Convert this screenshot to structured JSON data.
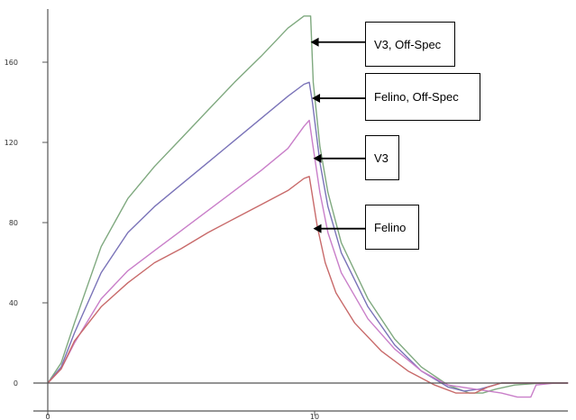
{
  "chart_data": {
    "type": "line",
    "title": "",
    "xlabel": "",
    "ylabel": "",
    "xlim": [
      0,
      19.5
    ],
    "ylim": [
      -8,
      185
    ],
    "x_ticks": [
      0,
      10
    ],
    "y_ticks": [
      0,
      40,
      80,
      120,
      160
    ],
    "grid": false,
    "colors": {
      "axis": "#555555",
      "zero_line": "#555555",
      "tick_label": "#333333",
      "arrow": "#000000",
      "callout_border": "#000000"
    },
    "series": [
      {
        "name": "V3, Off-Spec",
        "color": "#7fa97f",
        "points": [
          [
            0,
            0
          ],
          [
            0.5,
            10
          ],
          [
            1,
            30
          ],
          [
            2,
            68
          ],
          [
            3,
            92
          ],
          [
            4,
            108
          ],
          [
            5,
            122
          ],
          [
            6,
            136
          ],
          [
            7,
            150
          ],
          [
            8,
            163
          ],
          [
            9,
            177
          ],
          [
            9.6,
            183
          ],
          [
            9.85,
            183
          ],
          [
            9.95,
            150
          ],
          [
            10.2,
            118
          ],
          [
            10.5,
            95
          ],
          [
            11,
            70
          ],
          [
            12,
            42
          ],
          [
            13,
            22
          ],
          [
            14,
            8
          ],
          [
            15,
            -1
          ],
          [
            15.8,
            -5
          ],
          [
            16.3,
            -5
          ],
          [
            16.8,
            -3
          ],
          [
            17.5,
            -1
          ],
          [
            18.5,
            0
          ],
          [
            19.5,
            0
          ]
        ]
      },
      {
        "name": "Felino, Off-Spec",
        "color": "#7a73b8",
        "points": [
          [
            0,
            0
          ],
          [
            0.5,
            8
          ],
          [
            1,
            25
          ],
          [
            2,
            55
          ],
          [
            3,
            75
          ],
          [
            4,
            88
          ],
          [
            5,
            99
          ],
          [
            6,
            110
          ],
          [
            7,
            121
          ],
          [
            8,
            132
          ],
          [
            9,
            143
          ],
          [
            9.6,
            149
          ],
          [
            9.8,
            150
          ],
          [
            9.92,
            140
          ],
          [
            10.2,
            110
          ],
          [
            10.5,
            88
          ],
          [
            11,
            65
          ],
          [
            12,
            38
          ],
          [
            13,
            19
          ],
          [
            14,
            6
          ],
          [
            15,
            -2
          ],
          [
            15.6,
            -4
          ],
          [
            16.2,
            -3
          ],
          [
            17,
            0
          ],
          [
            18,
            0
          ],
          [
            19.5,
            0
          ]
        ]
      },
      {
        "name": "V3",
        "color": "#c97fc9",
        "points": [
          [
            0,
            0
          ],
          [
            0.5,
            7
          ],
          [
            1,
            20
          ],
          [
            2,
            42
          ],
          [
            3,
            56
          ],
          [
            4,
            66
          ],
          [
            5,
            76
          ],
          [
            6,
            86
          ],
          [
            7,
            96
          ],
          [
            8,
            106
          ],
          [
            9,
            117
          ],
          [
            9.6,
            128
          ],
          [
            9.8,
            131
          ],
          [
            9.92,
            120
          ],
          [
            10.2,
            95
          ],
          [
            10.5,
            75
          ],
          [
            11,
            55
          ],
          [
            12,
            32
          ],
          [
            13,
            17
          ],
          [
            14,
            6
          ],
          [
            15,
            -1
          ],
          [
            16,
            -3
          ],
          [
            17,
            -5
          ],
          [
            17.6,
            -7
          ],
          [
            18.1,
            -7
          ],
          [
            18.3,
            -1
          ],
          [
            19,
            0
          ],
          [
            19.5,
            0
          ]
        ]
      },
      {
        "name": "Felino",
        "color": "#c86a6a",
        "points": [
          [
            0,
            0
          ],
          [
            0.5,
            7
          ],
          [
            1,
            21
          ],
          [
            2,
            38
          ],
          [
            3,
            50
          ],
          [
            4,
            60
          ],
          [
            5,
            67
          ],
          [
            6,
            75
          ],
          [
            7,
            82
          ],
          [
            8,
            89
          ],
          [
            9,
            96
          ],
          [
            9.6,
            102
          ],
          [
            9.8,
            103
          ],
          [
            9.9,
            95
          ],
          [
            10.1,
            78
          ],
          [
            10.4,
            60
          ],
          [
            10.8,
            45
          ],
          [
            11.5,
            30
          ],
          [
            12.5,
            16
          ],
          [
            13.5,
            6
          ],
          [
            14.5,
            -1
          ],
          [
            15.3,
            -5
          ],
          [
            16,
            -5
          ],
          [
            16.5,
            -2
          ],
          [
            17,
            0
          ],
          [
            18,
            0
          ],
          [
            19.5,
            0
          ]
        ]
      }
    ],
    "callouts": [
      {
        "label": "V3, Off-Spec",
        "target": [
          9.85,
          170
        ]
      },
      {
        "label": "Felino, Off-Spec",
        "target": [
          9.9,
          142
        ]
      },
      {
        "label": "V3",
        "target": [
          9.95,
          112
        ]
      },
      {
        "label": "Felino",
        "target": [
          9.95,
          77
        ]
      }
    ]
  }
}
